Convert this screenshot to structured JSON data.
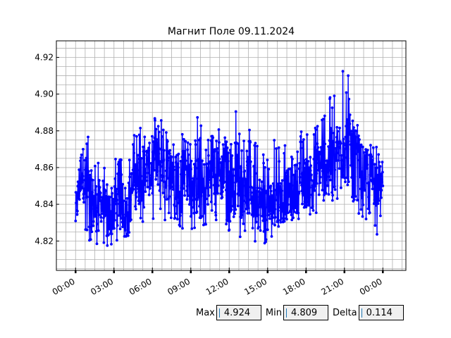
{
  "chart_data": {
    "type": "line",
    "title": "Магнит Поле 09.11.2024",
    "xlabel": "",
    "ylabel": "",
    "x_range_hours": [
      -1.5,
      25.8
    ],
    "ylim": [
      4.804,
      4.929
    ],
    "y_ticks": [
      4.82,
      4.84,
      4.86,
      4.88,
      4.9,
      4.92
    ],
    "y_tick_labels": [
      "4.82",
      "4.84",
      "4.86",
      "4.88",
      "4.90",
      "4.92"
    ],
    "x_ticks_hours": [
      0,
      3,
      6,
      9,
      12,
      15,
      18,
      21,
      24
    ],
    "x_tick_labels": [
      "00:00",
      "03:00",
      "06:00",
      "09:00",
      "12:00",
      "15:00",
      "18:00",
      "21:00",
      "00:00"
    ],
    "grid": true,
    "line_color": "#0000ff",
    "marker": "circle",
    "series": [
      {
        "x_hours": [
          0,
          0.5,
          1,
          1.5,
          2,
          2.5,
          3,
          3.5,
          4,
          4.5,
          5,
          5.5,
          6,
          6.5,
          7,
          7.5,
          8,
          8.5,
          9,
          9.5,
          10,
          10.5,
          11,
          11.5,
          12,
          12.5,
          13,
          13.5,
          14,
          14.5,
          15,
          15.5,
          16,
          16.5,
          17,
          17.5,
          18,
          18.5,
          19,
          19.5,
          20,
          20.5,
          21,
          21.5,
          22,
          22.5,
          23,
          23.5,
          24
        ],
        "values": [
          4.835,
          4.86,
          4.845,
          4.838,
          4.842,
          4.832,
          4.84,
          4.845,
          4.835,
          4.85,
          4.855,
          4.86,
          4.858,
          4.862,
          4.855,
          4.86,
          4.855,
          4.858,
          4.852,
          4.85,
          4.848,
          4.855,
          4.86,
          4.855,
          4.85,
          4.855,
          4.86,
          4.85,
          4.845,
          4.84,
          4.838,
          4.84,
          4.842,
          4.845,
          4.848,
          4.85,
          4.852,
          4.855,
          4.86,
          4.862,
          4.865,
          4.868,
          4.872,
          4.87,
          4.865,
          4.858,
          4.855,
          4.852,
          4.85
        ],
        "min_envelope": [
          4.822,
          4.82,
          4.818,
          4.817,
          4.818,
          4.812,
          4.818,
          4.82,
          4.822,
          4.825,
          4.828,
          4.83,
          4.828,
          4.832,
          4.83,
          4.83,
          4.828,
          4.826,
          4.825,
          4.828,
          4.822,
          4.825,
          4.83,
          4.828,
          4.825,
          4.82,
          4.822,
          4.825,
          4.818,
          4.814,
          4.818,
          4.825,
          4.826,
          4.823,
          4.826,
          4.828,
          4.832,
          4.834,
          4.835,
          4.838,
          4.84,
          4.842,
          4.842,
          4.838,
          4.836,
          4.832,
          4.826,
          4.822,
          4.84
        ],
        "max_envelope": [
          4.86,
          4.868,
          4.885,
          4.87,
          4.862,
          4.858,
          4.875,
          4.868,
          4.872,
          4.878,
          4.884,
          4.878,
          4.885,
          4.89,
          4.88,
          4.888,
          4.886,
          4.878,
          4.875,
          4.89,
          4.88,
          4.878,
          4.887,
          4.878,
          4.875,
          4.895,
          4.882,
          4.888,
          4.876,
          4.87,
          4.868,
          4.875,
          4.875,
          4.872,
          4.875,
          4.88,
          4.883,
          4.89,
          4.895,
          4.9,
          4.902,
          4.898,
          4.92,
          4.905,
          4.885,
          4.878,
          4.875,
          4.872,
          4.868
        ]
      }
    ]
  },
  "stats": {
    "max_label": "Max",
    "max_value": "4.924",
    "min_label": "Min",
    "min_value": "4.809",
    "delta_label": "Delta",
    "delta_value": "0.114"
  }
}
